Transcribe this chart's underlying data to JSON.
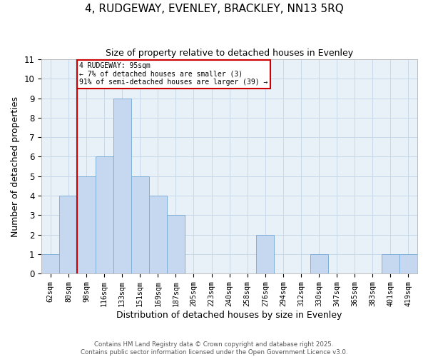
{
  "title1": "4, RUDGEWAY, EVENLEY, BRACKLEY, NN13 5RQ",
  "title2": "Size of property relative to detached houses in Evenley",
  "xlabel": "Distribution of detached houses by size in Evenley",
  "ylabel": "Number of detached properties",
  "bar_labels": [
    "62sqm",
    "80sqm",
    "98sqm",
    "116sqm",
    "133sqm",
    "151sqm",
    "169sqm",
    "187sqm",
    "205sqm",
    "223sqm",
    "240sqm",
    "258sqm",
    "276sqm",
    "294sqm",
    "312sqm",
    "330sqm",
    "347sqm",
    "365sqm",
    "383sqm",
    "401sqm",
    "419sqm"
  ],
  "bar_values": [
    1,
    4,
    5,
    6,
    9,
    5,
    4,
    3,
    0,
    0,
    0,
    0,
    2,
    0,
    0,
    1,
    0,
    0,
    0,
    1,
    1
  ],
  "bar_color": "#c5d8f0",
  "bar_edge_color": "#7fb0d8",
  "annotation_box_text": "4 RUDGEWAY: 95sqm\n← 7% of detached houses are smaller (3)\n91% of semi-detached houses are larger (39) →",
  "vline_color": "#cc0000",
  "vline_index": 1.5,
  "ylim": [
    0,
    11
  ],
  "yticks": [
    0,
    1,
    2,
    3,
    4,
    5,
    6,
    7,
    8,
    9,
    10,
    11
  ],
  "grid_color": "#c8d8e8",
  "bg_color": "#e8f0f8",
  "footer_line1": "Contains HM Land Registry data © Crown copyright and database right 2025.",
  "footer_line2": "Contains public sector information licensed under the Open Government Licence v3.0."
}
